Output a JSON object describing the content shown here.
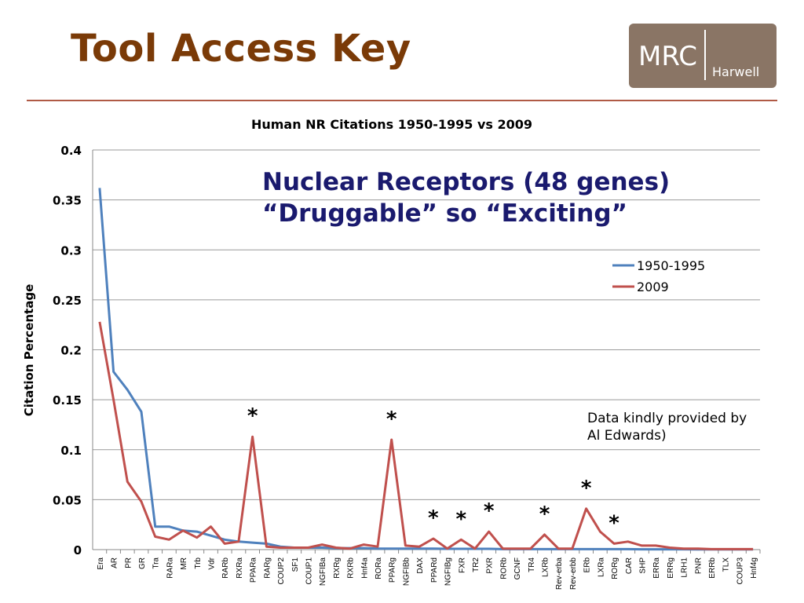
{
  "slide": {
    "title": "Tool Access Key"
  },
  "logo": {
    "text_main": "MRC",
    "text_sub": "Harwell"
  },
  "annotations": {
    "line1": "Nuclear Receptors (48 genes)",
    "line2": "“Druggable” so “Exciting”",
    "credit_line1": "Data kindly provided by",
    "credit_line2": "Al Edwards)"
  },
  "colors": {
    "title": "#7a3a07",
    "series_1950": "#4f81bd",
    "series_2009": "#c0504d",
    "annotation": "#1a1a6e"
  },
  "chart_data": {
    "type": "line",
    "title": "Human NR Citations 1950-1995 vs 2009",
    "xlabel": "",
    "ylabel": "Citation Percentage",
    "ylim": [
      0,
      0.4
    ],
    "yticks": [
      0,
      0.05,
      0.1,
      0.15,
      0.2,
      0.25,
      0.3,
      0.35,
      0.4
    ],
    "ytick_labels": [
      "0",
      "0.05",
      "0.1",
      "0.15",
      "0.2",
      "0.25",
      "0.3",
      "0.35",
      "0.4"
    ],
    "grid": true,
    "legend": "top-right",
    "categories": [
      "Era",
      "AR",
      "PR",
      "GR",
      "Tra",
      "RARa",
      "MR",
      "Trb",
      "Vdr",
      "RARb",
      "RXRa",
      "PPARa",
      "RARg",
      "COUP2",
      "SF1",
      "COUP1",
      "NGFIBa",
      "RXRg",
      "RXRb",
      "Hnf4a",
      "RORa",
      "PPARg",
      "NGFIBb",
      "DAX",
      "PPARd",
      "NGFIBg",
      "FXR",
      "TR2",
      "PXR",
      "RORb",
      "GCNF",
      "TR4",
      "LXRb",
      "Rev-erba",
      "Rev-erbb",
      "ERb",
      "LXRa",
      "RORg",
      "CAR",
      "SHP",
      "ERRa",
      "ERRg",
      "LRH1",
      "PNR",
      "ERRb",
      "TLX",
      "COUP3",
      "Hnf4g"
    ],
    "series": [
      {
        "name": "1950-1995",
        "values": [
          0.362,
          0.178,
          0.16,
          0.138,
          0.023,
          0.023,
          0.019,
          0.018,
          0.014,
          0.01,
          0.008,
          0.007,
          0.006,
          0.003,
          0.002,
          0.002,
          0.002,
          0.0015,
          0.0015,
          0.0015,
          0.001,
          0.001,
          0.001,
          0.001,
          0.001,
          0.0008,
          0.0008,
          0.0008,
          0.0008,
          0.0005,
          0.0005,
          0.0005,
          0.0005,
          0.0005,
          0.0005,
          0.0005,
          0.0005,
          0.0005,
          0.0005,
          0.0003,
          0.0003,
          0.0003,
          0.0003,
          0.0002,
          0.0002,
          0.0002,
          0.0002,
          0.0002
        ]
      },
      {
        "name": "2009",
        "values": [
          0.228,
          0.15,
          0.068,
          0.048,
          0.013,
          0.01,
          0.019,
          0.012,
          0.023,
          0.006,
          0.008,
          0.113,
          0.003,
          0.002,
          0.002,
          0.002,
          0.005,
          0.002,
          0.001,
          0.005,
          0.003,
          0.11,
          0.004,
          0.003,
          0.011,
          0.001,
          0.01,
          0.001,
          0.018,
          0.001,
          0.001,
          0.001,
          0.015,
          0.001,
          0.001,
          0.041,
          0.018,
          0.006,
          0.008,
          0.004,
          0.004,
          0.002,
          0.001,
          0.001,
          0.0005,
          0.0005,
          0.0005,
          0.0005
        ]
      }
    ],
    "annotations": [
      {
        "category": "PPARa",
        "value": 0.113,
        "text": "*"
      },
      {
        "category": "PPARg",
        "value": 0.11,
        "text": "*"
      },
      {
        "category": "PPARd",
        "value": 0.011,
        "text": "*"
      },
      {
        "category": "FXR",
        "value": 0.01,
        "text": "*"
      },
      {
        "category": "PXR",
        "value": 0.018,
        "text": "*"
      },
      {
        "category": "LXRb",
        "value": 0.015,
        "text": "*"
      },
      {
        "category": "ERb",
        "value": 0.041,
        "text": "*"
      },
      {
        "category": "RORg",
        "value": 0.006,
        "text": "*"
      }
    ]
  }
}
